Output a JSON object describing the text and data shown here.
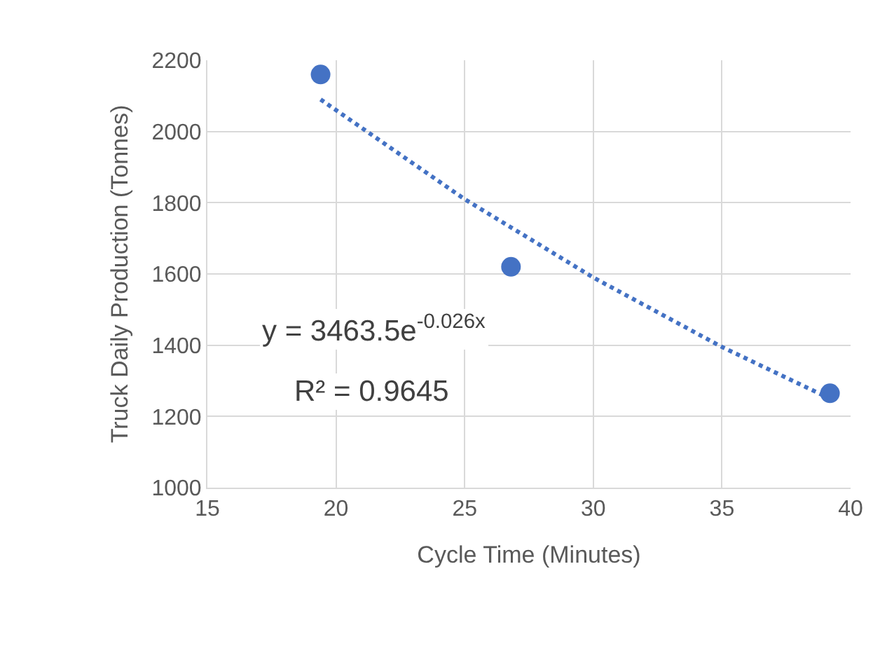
{
  "chart_data": {
    "type": "scatter",
    "xlabel": "Cycle Time (Minutes)",
    "ylabel": "Truck Daily Production (Tonnes)",
    "xlim": [
      15,
      40
    ],
    "xticks": [
      15,
      20,
      25,
      30,
      35,
      40
    ],
    "ylim": [
      1000,
      2200
    ],
    "yticks": [
      1000,
      1200,
      1400,
      1600,
      1800,
      2000,
      2200
    ],
    "grid": true,
    "series": [
      {
        "color": "#4472c4",
        "marker": "circle",
        "x": [
          19.4,
          26.8,
          39.2
        ],
        "values": [
          2160,
          1620,
          1265
        ]
      },
      {
        "type": "line",
        "color": "#4472c4",
        "line_style": "dotted",
        "marker": "none",
        "x": [
          19.4,
          25,
          30,
          35,
          39.2
        ],
        "values": [
          2090,
          1810,
          1590,
          1395,
          1250
        ]
      }
    ],
    "annotations": [
      "y = 3463.5e$^{-0.026x}$",
      "R² = 0.9645"
    ]
  }
}
